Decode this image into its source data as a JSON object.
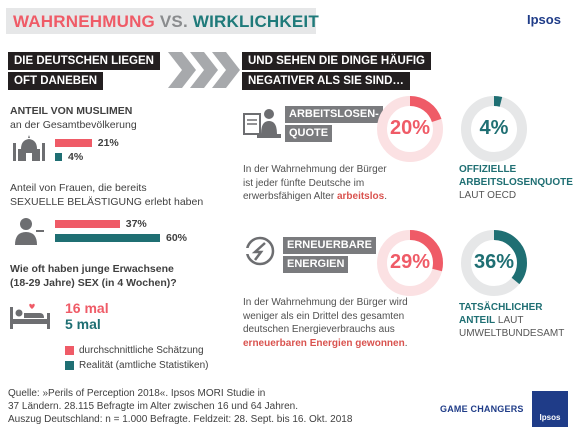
{
  "header": {
    "title_part1": "WAHRNEHMUNG",
    "title_part2": " VS. ",
    "title_part3": "WIRKLICHKEIT",
    "logo": "Ipsos"
  },
  "left": {
    "heading_line1": "DIE DEUTSCHEN LIEGEN",
    "heading_line2": "OFT DANEBEN",
    "q1_line1": "ANTEIL VON MUSLIMEN",
    "q1_line2": "an der Gesamtbevölkerung",
    "q1_estimate_label": "21%",
    "q1_actual_label": "4%",
    "q2_line1": "Anteil von Frauen, die bereits",
    "q2_line2": "SEXUELLE BELÄSTIGUNG erlebt haben",
    "q2_estimate_label": "37%",
    "q2_actual_label": "60%",
    "q3_line1": "Wie oft haben junge Erwachsene",
    "q3_line2": "(18-29 Jahre) SEX (in 4 Wochen)?",
    "q3_estimate": "16 mal",
    "q3_actual": "5 mal",
    "legend_estimate": "durchschnittliche Schätzung",
    "legend_actual": "Realität (amtliche Statistiken)"
  },
  "right": {
    "heading_line1": "UND SEHEN DIE DINGE HÄUFIG",
    "heading_line2": "NEGATIVER ALS SIE SIND…",
    "topic1_line1": "ARBEITSLOSEN-",
    "topic1_line2": "QUOTE",
    "topic1_estimate": "20%",
    "topic1_actual": "4%",
    "topic1_desc_line1": "In der Wahrnehmung der Bürger",
    "topic1_desc_line2": "ist jeder fünfte Deutsche im",
    "topic1_desc_line3a": "erwerbsfähigen Alter ",
    "topic1_desc_line3b": "arbeitslos",
    "topic1_desc_line3c": ".",
    "topic1_actual_line1": "OFFIZIELLE",
    "topic1_actual_line2": "ARBEITSLOSENQUOTE",
    "topic1_actual_line3": "LAUT OECD",
    "topic2_line1": "ERNEUERBARE",
    "topic2_line2": "ENERGIEN",
    "topic2_estimate": "29%",
    "topic2_actual": "36%",
    "topic2_desc_line1": "In der Wahrnehmung der Bürger wird",
    "topic2_desc_line2": "weniger als ein Drittel des gesamten",
    "topic2_desc_line3": "deutschen Energieverbrauchs aus",
    "topic2_desc_line4a": "erneuerbaren Energien gewonnen",
    "topic2_desc_line4b": ".",
    "topic2_actual_line1": "TATSÄCHLICHER",
    "topic2_actual_line2a": "ANTEIL",
    "topic2_actual_line2b": " LAUT",
    "topic2_actual_line3": "UMWELTBUNDESAMT"
  },
  "footer": {
    "source_line1": "Quelle: »Perils of Perception 2018«. Ipsos MORI Studie in",
    "source_line2": "37 Ländern. 28.115 Befragte im Alter zwischen 16 und 64 Jahren.",
    "source_line3": "Auszug Deutschland: n = 1.000 Befragte.  Feldzeit: 28. Sept. bis 16. Okt. 2018",
    "game_changers": "GAME CHANGERS",
    "logo_small": "Ipsos"
  },
  "colors": {
    "estimate": "#ef5b67",
    "actual": "#1f6f73",
    "ring_track": "#e6e7e8"
  },
  "chart_data": [
    {
      "type": "bar",
      "title": "ANTEIL VON MUSLIMEN an der Gesamtbevölkerung",
      "series": [
        {
          "name": "durchschnittliche Schätzung",
          "values": [
            21
          ]
        },
        {
          "name": "Realität (amtliche Statistiken)",
          "values": [
            4
          ]
        }
      ],
      "unit": "%"
    },
    {
      "type": "bar",
      "title": "Anteil von Frauen, die bereits SEXUELLE BELÄSTIGUNG erlebt haben",
      "series": [
        {
          "name": "durchschnittliche Schätzung",
          "values": [
            37
          ]
        },
        {
          "name": "Realität (amtliche Statistiken)",
          "values": [
            60
          ]
        }
      ],
      "unit": "%"
    },
    {
      "type": "pie",
      "title": "ARBEITSLOSENQUOTE",
      "series": [
        {
          "name": "durchschnittliche Schätzung",
          "values": [
            20
          ]
        },
        {
          "name": "Realität (amtliche Statistiken)",
          "values": [
            4
          ]
        }
      ],
      "unit": "%"
    },
    {
      "type": "pie",
      "title": "ERNEUERBARE ENERGIEN",
      "series": [
        {
          "name": "durchschnittliche Schätzung",
          "values": [
            29
          ]
        },
        {
          "name": "Realität (amtliche Statistiken)",
          "values": [
            36
          ]
        }
      ],
      "unit": "%"
    }
  ]
}
